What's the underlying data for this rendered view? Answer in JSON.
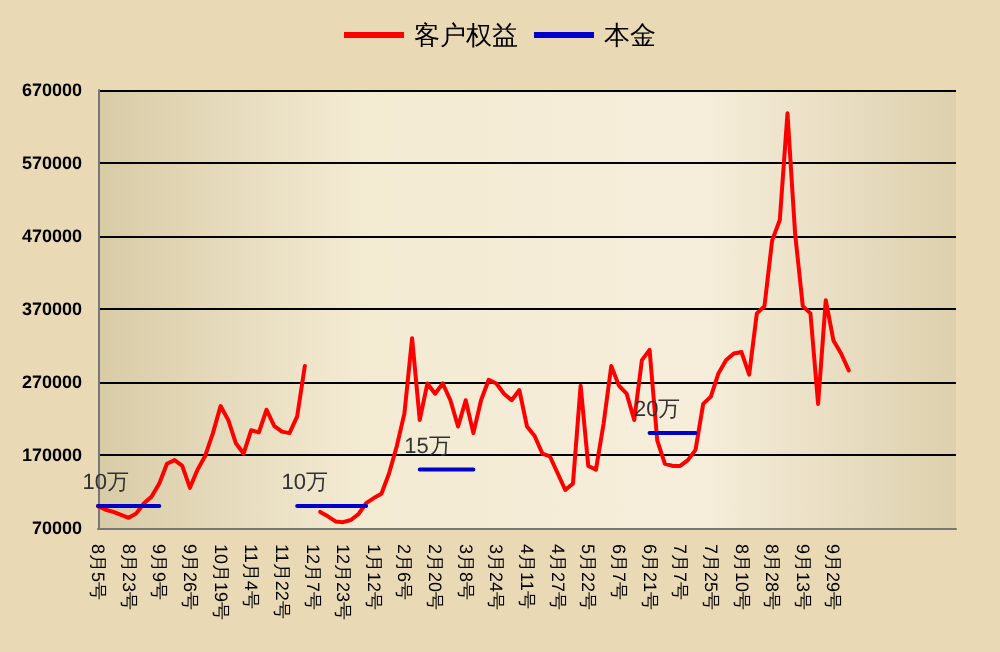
{
  "chart_data": {
    "type": "line",
    "categories": [
      "8月5号",
      null,
      null,
      null,
      "8月23号",
      null,
      null,
      null,
      "9月9号",
      null,
      null,
      null,
      "9月26号",
      null,
      null,
      null,
      "10月19号",
      null,
      null,
      null,
      "11月4号",
      null,
      null,
      null,
      "11月22号",
      null,
      null,
      null,
      "12月7号",
      null,
      null,
      null,
      "12月23号",
      null,
      null,
      null,
      "1月12号",
      null,
      null,
      null,
      "2月6号",
      null,
      null,
      null,
      "2月20号",
      null,
      null,
      null,
      "3月8号",
      null,
      null,
      null,
      "3月24号",
      null,
      null,
      null,
      "4月11号",
      null,
      null,
      null,
      "4月27号",
      null,
      null,
      null,
      "5月22号",
      null,
      null,
      null,
      "6月7号",
      null,
      null,
      null,
      "6月21号",
      null,
      null,
      null,
      "7月7号",
      null,
      null,
      null,
      "7月25号",
      null,
      null,
      null,
      "8月10号",
      null,
      null,
      null,
      "8月28号",
      null,
      null,
      null,
      "9月13号",
      null,
      null,
      null,
      "9月29号",
      null,
      null,
      null,
      null,
      null,
      null,
      null,
      null,
      null,
      null,
      null,
      null,
      null,
      null,
      null,
      null
    ],
    "series": [
      {
        "name": "客户权益",
        "color": "#ff0000",
        "values": [
          100000,
          95000,
          92000,
          88000,
          84000,
          90000,
          104000,
          113000,
          131000,
          158000,
          163000,
          155000,
          125000,
          150000,
          169000,
          200000,
          237000,
          218000,
          186000,
          172000,
          204000,
          201000,
          232000,
          210000,
          202000,
          200000,
          223000,
          292000,
          null,
          92000,
          86000,
          79000,
          78000,
          81000,
          89000,
          104000,
          111000,
          117000,
          145000,
          182000,
          227000,
          330000,
          218000,
          268000,
          254000,
          268000,
          245000,
          209000,
          245000,
          200000,
          245000,
          273000,
          268000,
          254000,
          245000,
          259000,
          209000,
          196000,
          172000,
          168000,
          145000,
          122000,
          131000,
          265000,
          155000,
          150000,
          213000,
          292000,
          265000,
          254000,
          218000,
          300000,
          314000,
          190000,
          158000,
          155000,
          155000,
          163000,
          177000,
          240000,
          250000,
          282000,
          300000,
          309000,
          311000,
          280000,
          364000,
          374000,
          464000,
          492000,
          638000,
          473000,
          374000,
          364000,
          240000,
          382000,
          327000,
          309000,
          286000,
          null,
          null,
          null,
          null,
          null,
          null,
          null,
          null,
          null,
          null,
          null,
          null,
          null,
          null
        ]
      },
      {
        "name": "本金",
        "color": "#0000cc",
        "values": [
          100000,
          100000,
          100000,
          100000,
          100000,
          100000,
          100000,
          100000,
          100000,
          null,
          null,
          null,
          null,
          null,
          null,
          null,
          null,
          null,
          null,
          null,
          null,
          null,
          null,
          null,
          null,
          null,
          100000,
          100000,
          100000,
          100000,
          100000,
          100000,
          100000,
          100000,
          100000,
          100000,
          null,
          null,
          null,
          null,
          null,
          null,
          150000,
          150000,
          150000,
          150000,
          150000,
          150000,
          150000,
          150000,
          null,
          null,
          null,
          null,
          null,
          null,
          null,
          null,
          null,
          null,
          null,
          null,
          null,
          null,
          null,
          null,
          null,
          null,
          null,
          null,
          null,
          null,
          200000,
          200000,
          200000,
          200000,
          200000,
          200000,
          200000,
          null,
          null,
          null,
          null,
          null,
          null,
          null,
          null,
          null,
          null,
          null,
          null,
          null,
          null,
          null,
          null,
          null,
          null,
          null,
          null,
          null,
          null,
          null,
          null,
          null,
          null,
          null,
          null,
          null,
          null,
          null,
          null,
          null,
          null
        ]
      }
    ],
    "annotations": [
      {
        "text": "10万",
        "y": 100000
      },
      {
        "text": "10万",
        "y": 100000
      },
      {
        "text": "15万",
        "y": 150000
      },
      {
        "text": "20万",
        "y": 200000
      }
    ],
    "ylim": [
      70000,
      670000
    ],
    "yticks": [
      70000,
      170000,
      270000,
      370000,
      470000,
      570000,
      670000
    ],
    "grid": "y",
    "legend": "top",
    "marker": "none",
    "line_style": "solid"
  }
}
